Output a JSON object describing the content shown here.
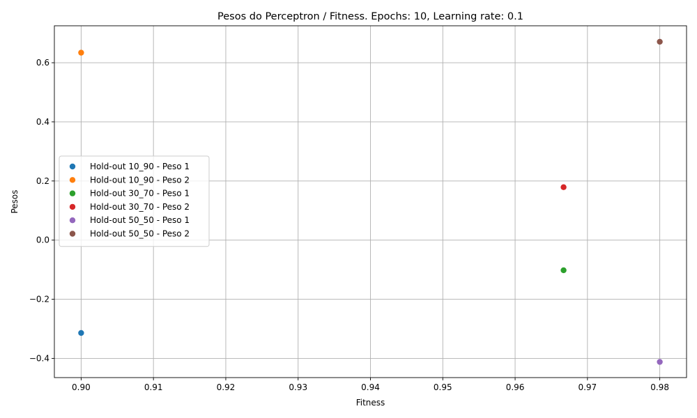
{
  "chart_data": {
    "type": "scatter",
    "title": "Pesos do Perceptron / Fitness. Epochs: 10, Learning rate: 0.1",
    "xlabel": "Fitness",
    "ylabel": "Pesos",
    "xlim": [
      0.8963,
      0.9837
    ],
    "ylim": [
      -0.465,
      0.725
    ],
    "xticks": [
      0.9,
      0.91,
      0.92,
      0.93,
      0.94,
      0.95,
      0.96,
      0.97,
      0.98
    ],
    "xtick_labels": [
      "0.90",
      "0.91",
      "0.92",
      "0.93",
      "0.94",
      "0.95",
      "0.96",
      "0.97",
      "0.98"
    ],
    "yticks": [
      -0.4,
      -0.2,
      0.0,
      0.2,
      0.4,
      0.6
    ],
    "ytick_labels": [
      "−0.4",
      "−0.2",
      "0.0",
      "0.2",
      "0.4",
      "0.6"
    ],
    "grid": true,
    "legend_position": "center-left",
    "series": [
      {
        "name": "Hold-out 10_90 - Peso 1",
        "color": "#1f77b4",
        "points": [
          {
            "x": 0.9,
            "y": -0.314
          }
        ]
      },
      {
        "name": "Hold-out 10_90 - Peso 2",
        "color": "#ff7f0e",
        "points": [
          {
            "x": 0.9,
            "y": 0.634
          }
        ]
      },
      {
        "name": "Hold-out 30_70 - Peso 1",
        "color": "#2ca02c",
        "points": [
          {
            "x": 0.9667,
            "y": -0.102
          }
        ]
      },
      {
        "name": "Hold-out 30_70 - Peso 2",
        "color": "#d62728",
        "points": [
          {
            "x": 0.9667,
            "y": 0.179
          }
        ]
      },
      {
        "name": "Hold-out 50_50 - Peso 1",
        "color": "#9467bd",
        "points": [
          {
            "x": 0.98,
            "y": -0.412
          }
        ]
      },
      {
        "name": "Hold-out 50_50 - Peso 2",
        "color": "#8c564b",
        "points": [
          {
            "x": 0.98,
            "y": 0.671
          }
        ]
      }
    ]
  }
}
